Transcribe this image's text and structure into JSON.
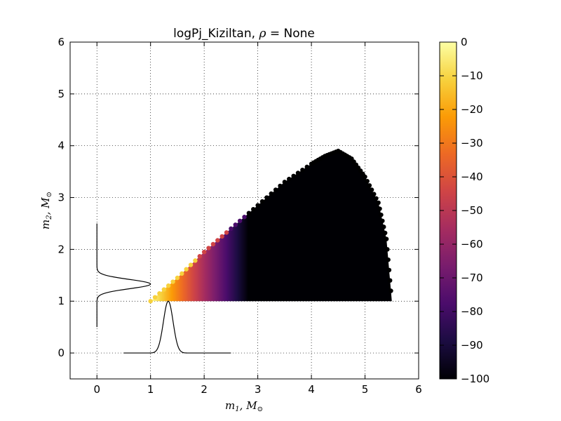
{
  "chart_data": {
    "type": "scatter",
    "title": "logPj_Kiziltan, ρ = None",
    "title_parts": {
      "prefix": "logPj_Kiziltan, ",
      "rho": "ρ",
      "eq": " = ",
      "suffix": "None"
    },
    "xlabel": "m₁, M⊙",
    "ylabel": "m₂, M⊙",
    "xlabel_parts": {
      "m": "m",
      "sub": "1",
      "comma": ", M",
      "sun": "⊙"
    },
    "ylabel_parts": {
      "m": "m",
      "sub": "2",
      "comma": ", M",
      "sun": "⊙"
    },
    "xlim": [
      -0.5,
      6
    ],
    "ylim": [
      -0.5,
      6
    ],
    "x_ticks": [
      0,
      1,
      2,
      3,
      4,
      5,
      6
    ],
    "y_ticks": [
      0,
      1,
      2,
      3,
      4,
      5,
      6
    ],
    "grid": true,
    "scatter_region": {
      "m1_min": 1.0,
      "m1_max": 5.5,
      "m2_min": 1.0,
      "upper_edge": [
        [
          1.0,
          1.0
        ],
        [
          1.5,
          1.45
        ],
        [
          2.0,
          1.95
        ],
        [
          2.5,
          2.4
        ],
        [
          3.0,
          2.85
        ],
        [
          3.5,
          3.3
        ],
        [
          4.0,
          3.65
        ],
        [
          4.25,
          3.8
        ],
        [
          4.5,
          3.9
        ],
        [
          4.75,
          3.75
        ],
        [
          5.0,
          3.4
        ],
        [
          5.25,
          2.9
        ],
        [
          5.4,
          2.2
        ],
        [
          5.5,
          1.0
        ]
      ]
    },
    "color_scale": {
      "label": "logPj_Kiziltan",
      "range": [
        -100,
        0
      ],
      "ticks": [
        "0",
        "−10",
        "−20",
        "−30",
        "−40",
        "−50",
        "−60",
        "−70",
        "−80",
        "−90",
        "−100"
      ],
      "colormap": "inferno",
      "colormap_stops": [
        "#000004",
        "#1b0c41",
        "#4a0c6b",
        "#781c6d",
        "#a52c60",
        "#cf4446",
        "#ed6925",
        "#fb9b06",
        "#f7d13d",
        "#fcffa4"
      ]
    },
    "marginal_m1": {
      "description_free": true,
      "peak": 1.33,
      "sigma": 0.09,
      "x_range": [
        0.5,
        2.5
      ],
      "baseline_y": 0,
      "peak_height": 1.0
    },
    "marginal_m2": {
      "peak": 1.33,
      "sigma": 0.09,
      "y_range": [
        0.5,
        2.5
      ],
      "baseline_x": 0,
      "peak_width": 1.0
    }
  }
}
